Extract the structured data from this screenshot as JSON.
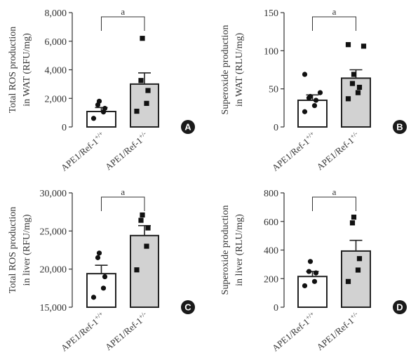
{
  "panels": [
    {
      "label": "A",
      "ylabel_lines": [
        "Total ROS production",
        "in WAT (RFU/mg)"
      ],
      "chart_data": {
        "type": "bar",
        "categories": [
          "APE1/Ref-1+/+",
          "APE1/Ref-1+/-"
        ],
        "values": [
          1080,
          3000
        ],
        "errors": [
          280,
          780
        ],
        "points": [
          [
            600,
            1050,
            1300,
            1550,
            1800
          ],
          [
            1100,
            1650,
            2550,
            3250,
            6200
          ]
        ],
        "marker": [
          "circle",
          "square"
        ],
        "bar_colors": [
          "#ffffff",
          "#d2d2d2"
        ],
        "ylim": [
          0,
          8000
        ],
        "yticks": [
          0,
          2000,
          4000,
          6000,
          8000
        ],
        "ytick_labels": [
          "0",
          "2,000",
          "4,000",
          "6,000",
          "8,000"
        ],
        "significance": "a"
      }
    },
    {
      "label": "B",
      "ylabel_lines": [
        "Superoxide production",
        "in WAT (RLU/mg)"
      ],
      "chart_data": {
        "type": "bar",
        "categories": [
          "APE1/Ref-1+/+",
          "APE1/Ref-1+/-"
        ],
        "values": [
          35,
          64
        ],
        "errors": [
          7,
          11
        ],
        "points": [
          [
            20,
            28,
            35,
            38,
            40,
            45,
            69
          ],
          [
            37,
            45,
            52,
            57,
            69,
            106,
            108
          ]
        ],
        "marker": [
          "circle",
          "square"
        ],
        "bar_colors": [
          "#ffffff",
          "#d2d2d2"
        ],
        "ylim": [
          0,
          150
        ],
        "yticks": [
          0,
          50,
          100,
          150
        ],
        "ytick_labels": [
          "0",
          "50",
          "100",
          "150"
        ],
        "significance": "a"
      }
    },
    {
      "label": "C",
      "ylabel_lines": [
        "Total ROS production",
        "in liver (RFU/mg)"
      ],
      "chart_data": {
        "type": "bar",
        "categories": [
          "APE1/Ref-1+/+",
          "APE1/Ref-1+/-"
        ],
        "values": [
          19400,
          24400
        ],
        "errors": [
          1100,
          1300
        ],
        "points": [
          [
            16300,
            17500,
            19000,
            21500,
            22100
          ],
          [
            19900,
            23000,
            25400,
            26400,
            27100
          ]
        ],
        "marker": [
          "circle",
          "square"
        ],
        "bar_colors": [
          "#ffffff",
          "#d2d2d2"
        ],
        "ylim": [
          15000,
          30000
        ],
        "yticks": [
          15000,
          20000,
          25000,
          30000
        ],
        "ytick_labels": [
          "15,000",
          "20,000",
          "25,000",
          "30,000"
        ],
        "significance": "a"
      }
    },
    {
      "label": "D",
      "ylabel_lines": [
        "Superoxide production",
        "in liver (RLU/mg)"
      ],
      "chart_data": {
        "type": "bar",
        "categories": [
          "APE1/Ref-1+/+",
          "APE1/Ref-1+/-"
        ],
        "values": [
          215,
          393
        ],
        "errors": [
          35,
          75
        ],
        "points": [
          [
            150,
            180,
            240,
            250,
            320
          ],
          [
            180,
            260,
            340,
            590,
            630
          ]
        ],
        "marker": [
          "circle",
          "square"
        ],
        "bar_colors": [
          "#ffffff",
          "#d2d2d2"
        ],
        "ylim": [
          0,
          800
        ],
        "yticks": [
          0,
          200,
          400,
          600,
          800
        ],
        "ytick_labels": [
          "0",
          "200",
          "400",
          "600",
          "800"
        ],
        "significance": "a"
      }
    }
  ]
}
